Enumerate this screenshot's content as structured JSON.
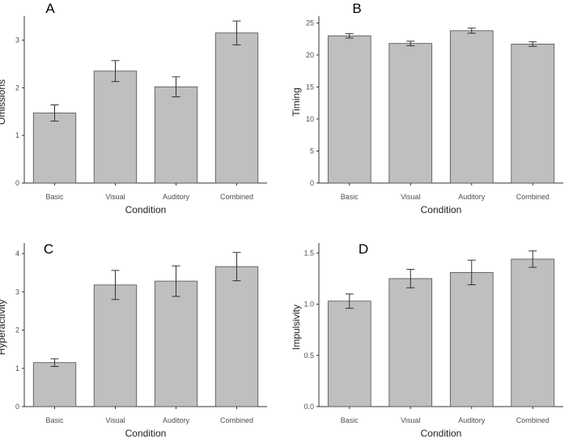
{
  "colors": {
    "bar_fill": "#bfbfbf",
    "bar_stroke": "#4d4d4d",
    "axis": "#333333",
    "error_bar": "#333333"
  },
  "chart_data": [
    {
      "type": "bar",
      "panel_label": "A",
      "categories": [
        "Basic",
        "Visual",
        "Auditory",
        "Combined"
      ],
      "values": [
        1.47,
        2.35,
        2.02,
        3.15
      ],
      "errors": [
        0.17,
        0.22,
        0.21,
        0.25
      ],
      "ylim": [
        0,
        3.4
      ],
      "yticks": [
        0,
        1,
        2,
        3
      ],
      "ytick_labels": [
        "0",
        "1",
        "2",
        "3"
      ],
      "xlabel": "Condition",
      "ylabel": "Omissions"
    },
    {
      "type": "bar",
      "panel_label": "B",
      "categories": [
        "Basic",
        "Visual",
        "Auditory",
        "Combined"
      ],
      "values": [
        23.0,
        21.8,
        23.8,
        21.7
      ],
      "errors": [
        0.35,
        0.35,
        0.4,
        0.35
      ],
      "ylim": [
        0,
        25.3
      ],
      "yticks": [
        0,
        5,
        10,
        15,
        20,
        25
      ],
      "ytick_labels": [
        "0",
        "5",
        "10",
        "15",
        "20",
        "25"
      ],
      "xlabel": "Condition",
      "ylabel": "Timing"
    },
    {
      "type": "bar",
      "panel_label": "C",
      "categories": [
        "Basic",
        "Visual",
        "Auditory",
        "Combined"
      ],
      "values": [
        1.15,
        3.18,
        3.28,
        3.66
      ],
      "errors": [
        0.1,
        0.38,
        0.4,
        0.37
      ],
      "ylim": [
        0,
        4.15
      ],
      "yticks": [
        0,
        1,
        2,
        3,
        4
      ],
      "ytick_labels": [
        "0",
        "1",
        "2",
        "3",
        "4"
      ],
      "xlabel": "Condition",
      "ylabel": "Hyperactivity"
    },
    {
      "type": "bar",
      "panel_label": "D",
      "categories": [
        "Basic",
        "Visual",
        "Auditory",
        "Combined"
      ],
      "values": [
        1.03,
        1.25,
        1.31,
        1.44
      ],
      "errors": [
        0.07,
        0.09,
        0.12,
        0.08
      ],
      "ylim": [
        0,
        1.55
      ],
      "yticks": [
        0.0,
        0.5,
        1.0,
        1.5
      ],
      "ytick_labels": [
        "0.0",
        "0.5",
        "1.0",
        "1.5"
      ],
      "xlabel": "Condition",
      "ylabel": "Impulsivity"
    }
  ]
}
